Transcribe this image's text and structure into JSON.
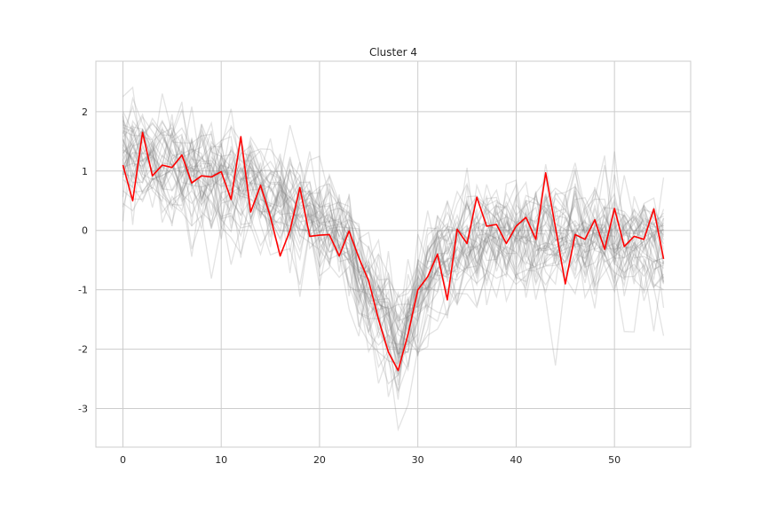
{
  "chart_data": {
    "type": "line",
    "title": "Cluster 4",
    "xlabel": "",
    "ylabel": "",
    "xlim": [
      -2.75,
      57.75
    ],
    "ylim": [
      -3.65,
      2.85
    ],
    "xticks": [
      0,
      10,
      20,
      30,
      40,
      50
    ],
    "xtick_labels": [
      "0",
      "10",
      "20",
      "30",
      "40",
      "50"
    ],
    "yticks": [
      -3,
      -2,
      -1,
      0,
      1,
      2
    ],
    "ytick_labels": [
      "-3",
      "-2",
      "-1",
      "0",
      "1",
      "2"
    ],
    "grid": true,
    "legend": "none",
    "background_series_color": "#808080",
    "background_series_count": 40,
    "highlight": {
      "color": "#ff0000",
      "x": [
        0,
        1,
        2,
        3,
        4,
        5,
        6,
        7,
        8,
        9,
        10,
        11,
        12,
        13,
        14,
        15,
        16,
        17,
        18,
        19,
        20,
        21,
        22,
        23,
        24,
        25,
        26,
        27,
        28,
        29,
        30,
        31,
        32,
        33,
        34,
        35,
        36,
        37,
        38,
        39,
        40,
        41,
        42,
        43,
        44,
        45,
        46,
        47,
        48,
        49,
        50,
        51,
        52,
        53,
        54,
        55
      ],
      "values": [
        1.1,
        0.5,
        1.65,
        0.92,
        1.1,
        1.06,
        1.27,
        0.8,
        0.92,
        0.9,
        0.99,
        0.52,
        1.58,
        0.31,
        0.76,
        0.23,
        -0.43,
        0.0,
        0.72,
        -0.1,
        -0.08,
        -0.07,
        -0.43,
        -0.01,
        -0.46,
        -0.85,
        -1.5,
        -2.05,
        -2.36,
        -1.75,
        -1.0,
        -0.78,
        -0.4,
        -1.17,
        0.02,
        -0.22,
        0.56,
        0.07,
        0.1,
        -0.22,
        0.07,
        0.22,
        -0.15,
        0.97,
        0.05,
        -0.9,
        -0.07,
        -0.15,
        0.18,
        -0.32,
        0.37,
        -0.27,
        -0.1,
        -0.15,
        0.36,
        -0.48
      ]
    }
  }
}
